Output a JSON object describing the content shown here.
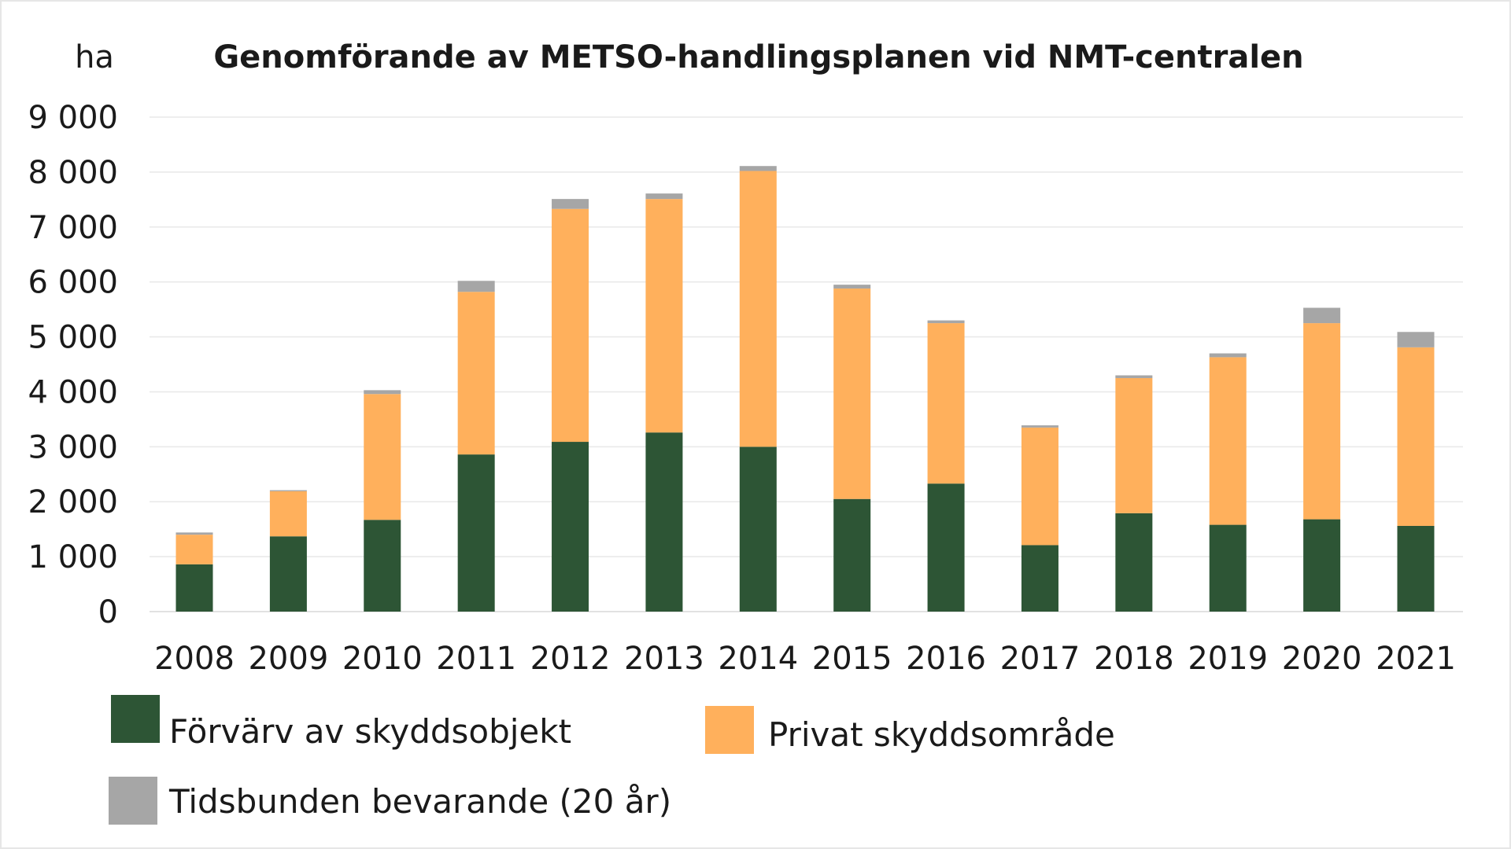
{
  "chart_data": {
    "type": "bar",
    "stacked": true,
    "title": "Genomförande av METSO-handlingsplanen vid NMT-centralen",
    "ylabel": "ha",
    "xlabel": "",
    "ylim": [
      0,
      9000
    ],
    "yticks": [
      0,
      1000,
      2000,
      3000,
      4000,
      5000,
      6000,
      7000,
      8000,
      9000
    ],
    "ytick_labels": [
      "0",
      "1 000",
      "2 000",
      "3 000",
      "4 000",
      "5 000",
      "6 000",
      "7 000",
      "8 000",
      "9 000"
    ],
    "grid": true,
    "legend_position": "bottom",
    "categories": [
      "2008",
      "2009",
      "2010",
      "2011",
      "2012",
      "2013",
      "2014",
      "2015",
      "2016",
      "2017",
      "2018",
      "2019",
      "2020",
      "2021"
    ],
    "series": [
      {
        "name": "Förvärv av skyddsobjekt",
        "color": "#2d5535",
        "values": [
          860,
          1370,
          1670,
          2860,
          3090,
          3260,
          3000,
          2050,
          2330,
          1210,
          1790,
          1580,
          1680,
          1560
        ]
      },
      {
        "name": "Privat skyddsområde",
        "color": "#ffb05c",
        "values": [
          540,
          820,
          2290,
          2960,
          4240,
          4250,
          5020,
          3830,
          2920,
          2140,
          2460,
          3050,
          3570,
          3250
        ]
      },
      {
        "name": "Tidsbunden bevarande (20 år)",
        "color": "#a6a6a6",
        "values": [
          40,
          20,
          70,
          200,
          180,
          100,
          90,
          70,
          50,
          40,
          50,
          70,
          280,
          280
        ]
      }
    ]
  }
}
